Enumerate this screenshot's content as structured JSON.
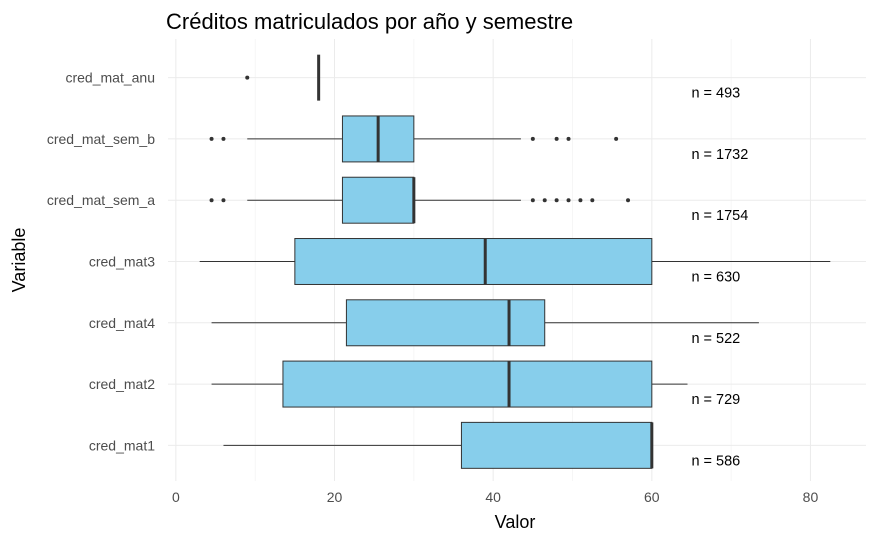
{
  "chart_data": {
    "type": "boxplot",
    "title": "Créditos matriculados por año y semestre",
    "xlabel": "Valor",
    "ylabel": "Variable",
    "xlim": [
      -2,
      87
    ],
    "xticks": [
      0,
      20,
      40,
      60,
      80
    ],
    "grid": true,
    "box_color": "#87CEEB",
    "categories": [
      "cred_mat_anu",
      "cred_mat_sem_b",
      "cred_mat_sem_a",
      "cred_mat3",
      "cred_mat4",
      "cred_mat2",
      "cred_mat1"
    ],
    "series": [
      {
        "category": "cred_mat_anu",
        "whisker_low": 18,
        "q1": 18,
        "median": 18,
        "q3": 18,
        "whisker_high": 18,
        "outliers": [
          9
        ],
        "n_label": "n = 493"
      },
      {
        "category": "cred_mat_sem_b",
        "whisker_low": 9,
        "q1": 21,
        "median": 25.5,
        "q3": 30,
        "whisker_high": 43.5,
        "outliers": [
          4.5,
          6,
          45,
          48,
          49.5,
          55.5
        ],
        "n_label": "n = 1732"
      },
      {
        "category": "cred_mat_sem_a",
        "whisker_low": 9,
        "q1": 21,
        "median": 30,
        "q3": 30,
        "whisker_high": 43.5,
        "outliers": [
          4.5,
          6,
          45,
          46.5,
          48,
          49.5,
          51,
          52.5,
          57
        ],
        "n_label": "n = 1754"
      },
      {
        "category": "cred_mat3",
        "whisker_low": 3,
        "q1": 15,
        "median": 39,
        "q3": 60,
        "whisker_high": 82.5,
        "outliers": [],
        "n_label": "n = 630"
      },
      {
        "category": "cred_mat4",
        "whisker_low": 4.5,
        "q1": 21.5,
        "median": 42,
        "q3": 46.5,
        "whisker_high": 73.5,
        "outliers": [],
        "n_label": "n = 522"
      },
      {
        "category": "cred_mat2",
        "whisker_low": 4.5,
        "q1": 13.5,
        "median": 42,
        "q3": 60,
        "whisker_high": 64.5,
        "outliers": [],
        "n_label": "n = 729"
      },
      {
        "category": "cred_mat1",
        "whisker_low": 6,
        "q1": 36,
        "median": 60,
        "q3": 60,
        "whisker_high": 60,
        "outliers": [],
        "n_label": "n = 586"
      }
    ]
  }
}
